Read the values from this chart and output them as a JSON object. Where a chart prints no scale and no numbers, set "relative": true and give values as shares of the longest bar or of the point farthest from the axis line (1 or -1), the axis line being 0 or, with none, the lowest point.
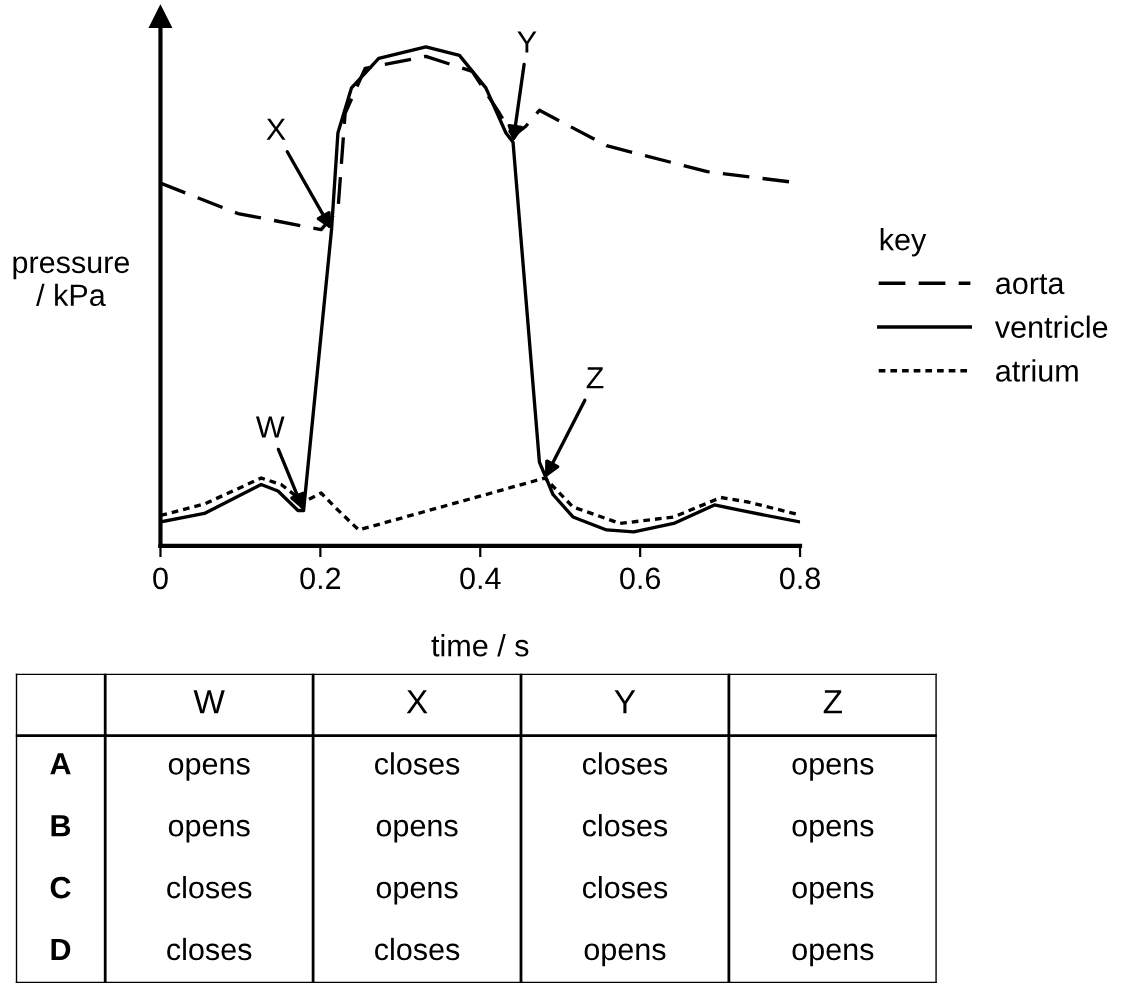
{
  "chart_data": [
    {
      "type": "line",
      "relative": true,
      "xlabel": "time / s",
      "ylabel": "pressure\n/ kPa",
      "legend_title": "key",
      "legend": "right",
      "xlim": [
        0,
        0.8
      ],
      "xticks": [
        0,
        0.2,
        0.4,
        0.6,
        0.8
      ],
      "grid": false,
      "series": [
        {
          "name": "aorta",
          "color": "#000000",
          "line_style": "dashed",
          "x": [
            0,
            0.097,
            0.201,
            0.222,
            0.231,
            0.256,
            0.332,
            0.39,
            0.424,
            0.441,
            0.457,
            0.474,
            0.558,
            0.684,
            0.8
          ],
          "values": [
            0.727,
            0.666,
            0.634,
            0.673,
            0.867,
            0.957,
            0.981,
            0.951,
            0.867,
            0.821,
            0.841,
            0.873,
            0.802,
            0.75,
            0.727
          ]
        },
        {
          "name": "ventricle",
          "color": "#000000",
          "line_style": "solid",
          "x": [
            0,
            0.055,
            0.126,
            0.147,
            0.172,
            0.179,
            0.214,
            0.222,
            0.239,
            0.273,
            0.332,
            0.374,
            0.407,
            0.432,
            0.441,
            0.474,
            0.491,
            0.516,
            0.558,
            0.592,
            0.642,
            0.693,
            0.726,
            0.8
          ],
          "values": [
            0.048,
            0.065,
            0.123,
            0.11,
            0.071,
            0.071,
            0.634,
            0.828,
            0.918,
            0.977,
            1.0,
            0.983,
            0.918,
            0.828,
            0.809,
            0.168,
            0.103,
            0.058,
            0.032,
            0.028,
            0.045,
            0.082,
            0.071,
            0.048
          ]
        },
        {
          "name": "atrium",
          "color": "#000000",
          "line_style": "dotted",
          "x": [
            0,
            0.055,
            0.126,
            0.151,
            0.179,
            0.201,
            0.218,
            0.248,
            0.481,
            0.516,
            0.575,
            0.642,
            0.701,
            0.735,
            0.8
          ],
          "values": [
            0.061,
            0.084,
            0.136,
            0.123,
            0.088,
            0.106,
            0.078,
            0.032,
            0.136,
            0.078,
            0.045,
            0.058,
            0.097,
            0.088,
            0.062
          ]
        }
      ],
      "annotations": [
        {
          "text": "W",
          "x": 0.179,
          "y": 0.071
        },
        {
          "text": "X",
          "x": 0.214,
          "y": 0.634
        },
        {
          "text": "Y",
          "x": 0.441,
          "y": 0.809
        },
        {
          "text": "Z",
          "x": 0.481,
          "y": 0.136
        }
      ]
    },
    {
      "type": "other",
      "categories": [
        "W",
        "X",
        "Y",
        "Z"
      ],
      "y_categories": [
        "A",
        "B",
        "C",
        "D"
      ],
      "cell_labels": [
        [
          "opens",
          "closes",
          "closes",
          "opens"
        ],
        [
          "opens",
          "opens",
          "closes",
          "opens"
        ],
        [
          "closes",
          "opens",
          "closes",
          "opens"
        ],
        [
          "closes",
          "closes",
          "opens",
          "opens"
        ]
      ]
    }
  ]
}
